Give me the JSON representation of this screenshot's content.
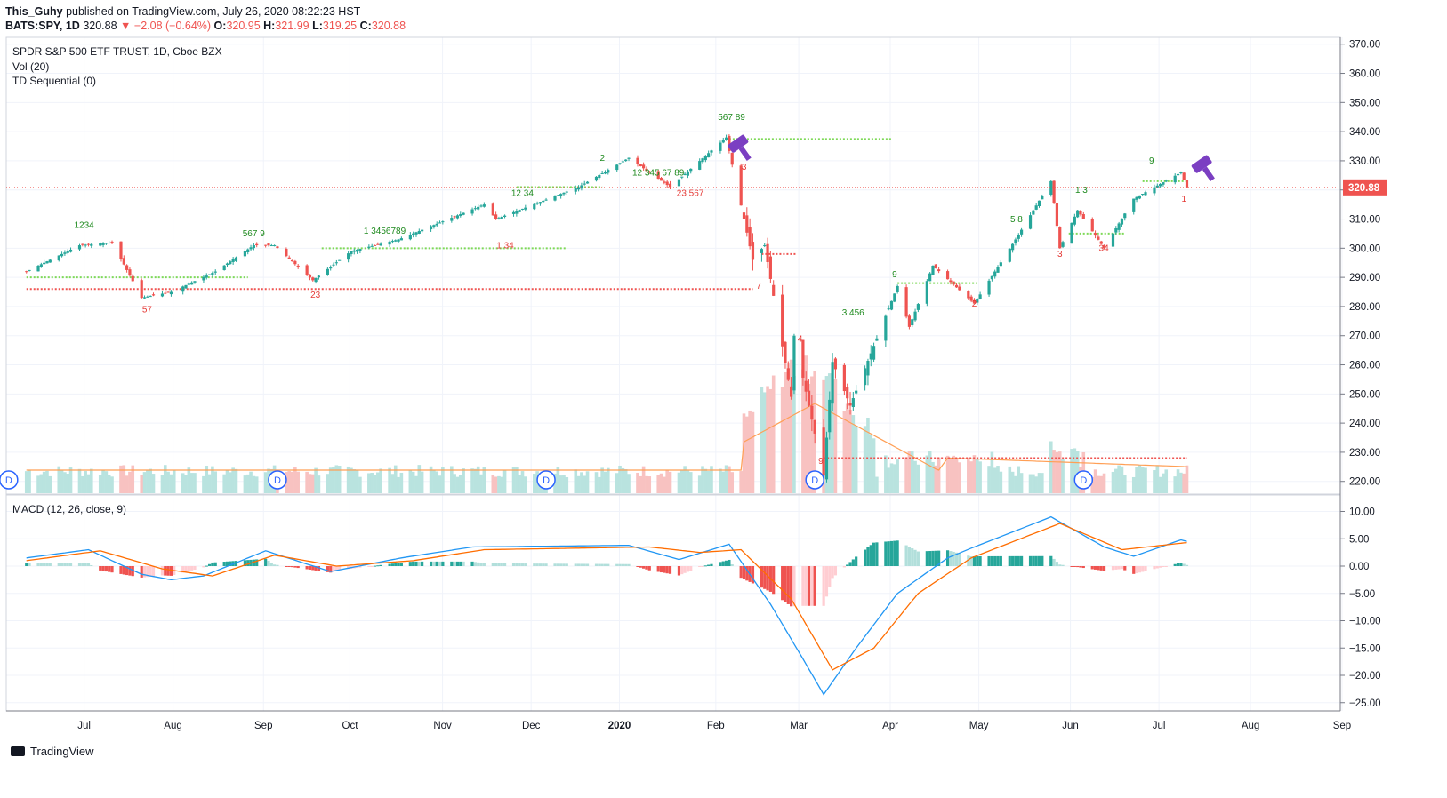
{
  "header": {
    "author": "This_Guhy",
    "published": "published on TradingView.com, July 26, 2020 08:22:23 HST",
    "symbol": "BATS:SPY, 1D",
    "last": "320.88",
    "change": "−2.08 (−0.64%)",
    "o_label": "O:",
    "o": "320.95",
    "h_label": "H:",
    "h": "321.99",
    "l_label": "L:",
    "l": "319.25",
    "c_label": "C:",
    "c": "320.88"
  },
  "legend": {
    "title": "SPDR S&P 500 ETF TRUST, 1D, Cboe BZX",
    "vol": "Vol (20)",
    "td": "TD Sequential (0)",
    "macd": "MACD (12, 26, close, 9)"
  },
  "footer": {
    "brand": "TradingView"
  },
  "colors": {
    "up": "#26a69a",
    "down": "#ef5350",
    "grid": "#f0f3fa",
    "macd": "#2196f3",
    "signal": "#ff6d00",
    "td_buy": "#1e8a1e",
    "td_sell": "#e53935",
    "gavel": "#7b3fc2"
  },
  "chart_data": [
    {
      "type": "candlestick",
      "title": "SPDR S&P 500 ETF TRUST, 1D, Cboe BZX",
      "x_ticks": [
        "Jul",
        "Aug",
        "Sep",
        "Oct",
        "Nov",
        "Dec",
        "2020",
        "Feb",
        "Mar",
        "Apr",
        "May",
        "Jun",
        "Jul",
        "Aug",
        "Sep"
      ],
      "y_ticks": [
        "370.00",
        "360.00",
        "350.00",
        "340.00",
        "330.00",
        "320.00",
        "310.00",
        "300.00",
        "290.00",
        "280.00",
        "270.00",
        "260.00",
        "250.00",
        "240.00",
        "230.00",
        "220.00"
      ],
      "ylim": [
        216,
        371
      ],
      "last_price_label": "320.88",
      "price_path_keypoints": [
        {
          "date": "2019-06-27",
          "close": 292
        },
        {
          "date": "2019-07-15",
          "close": 301
        },
        {
          "date": "2019-07-26",
          "close": 302
        },
        {
          "date": "2019-08-05",
          "close": 283
        },
        {
          "date": "2019-08-15",
          "close": 285
        },
        {
          "date": "2019-08-30",
          "close": 292
        },
        {
          "date": "2019-09-12",
          "close": 301
        },
        {
          "date": "2019-09-19",
          "close": 301
        },
        {
          "date": "2019-10-02",
          "close": 289
        },
        {
          "date": "2019-10-15",
          "close": 299
        },
        {
          "date": "2019-10-31",
          "close": 303
        },
        {
          "date": "2019-11-29",
          "close": 315
        },
        {
          "date": "2019-12-03",
          "close": 310
        },
        {
          "date": "2019-12-31",
          "close": 321
        },
        {
          "date": "2020-01-17",
          "close": 331
        },
        {
          "date": "2020-01-31",
          "close": 321
        },
        {
          "date": "2020-02-19",
          "close": 338
        },
        {
          "date": "2020-02-28",
          "close": 296
        },
        {
          "date": "2020-03-03",
          "close": 301
        },
        {
          "date": "2020-03-12",
          "close": 249
        },
        {
          "date": "2020-03-13",
          "close": 270
        },
        {
          "date": "2020-03-23",
          "close": 222
        },
        {
          "date": "2020-03-26",
          "close": 261
        },
        {
          "date": "2020-04-01",
          "close": 246
        },
        {
          "date": "2020-04-17",
          "close": 287
        },
        {
          "date": "2020-04-21",
          "close": 273
        },
        {
          "date": "2020-04-29",
          "close": 294
        },
        {
          "date": "2020-05-13",
          "close": 281
        },
        {
          "date": "2020-05-27",
          "close": 303
        },
        {
          "date": "2020-06-08",
          "close": 323
        },
        {
          "date": "2020-06-11",
          "close": 300
        },
        {
          "date": "2020-06-17",
          "close": 313
        },
        {
          "date": "2020-06-26",
          "close": 300
        },
        {
          "date": "2020-07-06",
          "close": 317
        },
        {
          "date": "2020-07-22",
          "close": 326
        },
        {
          "date": "2020-07-24",
          "close": 320.88
        }
      ],
      "td_levels": [
        {
          "color": "green",
          "value": 290,
          "from": "2019-06-27",
          "to": "2019-09-10"
        },
        {
          "color": "red",
          "value": 286,
          "from": "2019-06-27",
          "to": "2020-02-28"
        },
        {
          "color": "green",
          "value": 300,
          "from": "2019-10-05",
          "to": "2019-12-27"
        },
        {
          "color": "green",
          "value": 321,
          "from": "2019-12-10",
          "to": "2020-01-08"
        },
        {
          "color": "green",
          "value": 337.5,
          "from": "2020-02-20",
          "to": "2020-04-15"
        },
        {
          "color": "red",
          "value": 298,
          "from": "2020-03-02",
          "to": "2020-03-14"
        },
        {
          "color": "red",
          "value": 228,
          "from": "2020-03-23",
          "to": "2020-07-24"
        },
        {
          "color": "green",
          "value": 288,
          "from": "2020-04-17",
          "to": "2020-05-14"
        },
        {
          "color": "green",
          "value": 305,
          "from": "2020-06-14",
          "to": "2020-07-03"
        },
        {
          "color": "green",
          "value": 323,
          "from": "2020-07-09",
          "to": "2020-07-24"
        }
      ]
    },
    {
      "type": "bar",
      "title": "Vol (20)",
      "note": "volume histogram with 20-day MA overlay (orange)",
      "peak_dates": [
        "2020-03-12",
        "2020-03-16",
        "2020-03-20"
      ]
    },
    {
      "type": "line",
      "title": "MACD (12, 26, close, 9)",
      "y_ticks": [
        "10.00",
        "5.00",
        "0.00",
        "−5.00",
        "−10.00",
        "−15.00",
        "−20.00",
        "−25.00"
      ],
      "ylim": [
        -27,
        11
      ],
      "series": [
        {
          "name": "MACD",
          "color": "#2196f3",
          "keypoints": [
            {
              "date": "2019-06-27",
              "v": 1.5
            },
            {
              "date": "2019-07-18",
              "v": 3
            },
            {
              "date": "2019-08-05",
              "v": -1.5
            },
            {
              "date": "2019-08-15",
              "v": -2.5
            },
            {
              "date": "2019-08-26",
              "v": -1.8
            },
            {
              "date": "2019-09-16",
              "v": 2.8
            },
            {
              "date": "2019-10-08",
              "v": -1.0
            },
            {
              "date": "2019-11-01",
              "v": 1.5
            },
            {
              "date": "2019-11-25",
              "v": 3.5
            },
            {
              "date": "2020-01-17",
              "v": 3.8
            },
            {
              "date": "2020-02-03",
              "v": 1.2
            },
            {
              "date": "2020-02-20",
              "v": 4.0
            },
            {
              "date": "2020-03-05",
              "v": -7
            },
            {
              "date": "2020-03-16",
              "v": -17
            },
            {
              "date": "2020-03-23",
              "v": -23.5
            },
            {
              "date": "2020-04-03",
              "v": -15
            },
            {
              "date": "2020-04-17",
              "v": -5
            },
            {
              "date": "2020-05-04",
              "v": 1.5
            },
            {
              "date": "2020-05-13",
              "v": 3.5
            },
            {
              "date": "2020-06-08",
              "v": 9
            },
            {
              "date": "2020-06-26",
              "v": 3.5
            },
            {
              "date": "2020-07-06",
              "v": 1.8
            },
            {
              "date": "2020-07-22",
              "v": 4.8
            },
            {
              "date": "2020-07-24",
              "v": 4.5
            }
          ]
        },
        {
          "name": "Signal",
          "color": "#ff6d00",
          "keypoints": [
            {
              "date": "2019-06-27",
              "v": 1.0
            },
            {
              "date": "2019-07-22",
              "v": 2.8
            },
            {
              "date": "2019-08-12",
              "v": -0.5
            },
            {
              "date": "2019-08-29",
              "v": -1.8
            },
            {
              "date": "2019-09-19",
              "v": 2.0
            },
            {
              "date": "2019-10-10",
              "v": 0.0
            },
            {
              "date": "2019-11-05",
              "v": 1.0
            },
            {
              "date": "2019-11-29",
              "v": 3.0
            },
            {
              "date": "2020-01-24",
              "v": 3.5
            },
            {
              "date": "2020-02-10",
              "v": 2.5
            },
            {
              "date": "2020-02-24",
              "v": 3.0
            },
            {
              "date": "2020-03-12",
              "v": -6
            },
            {
              "date": "2020-03-26",
              "v": -19
            },
            {
              "date": "2020-04-09",
              "v": -15
            },
            {
              "date": "2020-04-24",
              "v": -5
            },
            {
              "date": "2020-05-12",
              "v": 1.5
            },
            {
              "date": "2020-06-11",
              "v": 7.8
            },
            {
              "date": "2020-07-02",
              "v": 3
            },
            {
              "date": "2020-07-24",
              "v": 4.3
            }
          ]
        }
      ]
    }
  ]
}
